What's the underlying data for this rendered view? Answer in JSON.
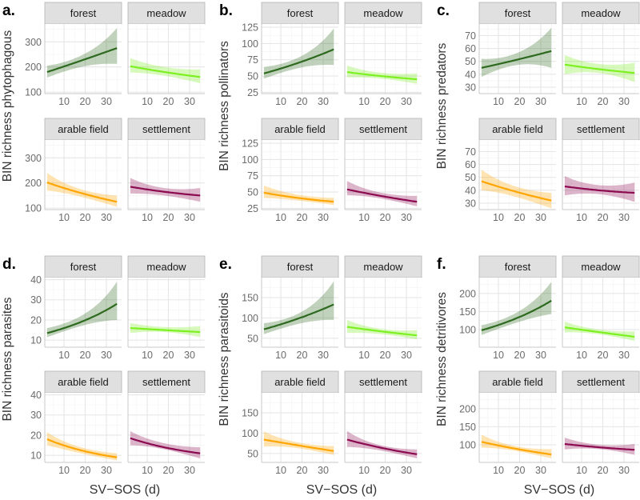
{
  "chart_data": [
    {
      "type": "line",
      "panel_label": "a.",
      "ylabel": "BIN richness phytophagous",
      "ylim": [
        94,
        371
      ],
      "yticks": [
        "100",
        "200",
        "300"
      ],
      "ytick_values": [
        100,
        200,
        300
      ],
      "xlim": [
        0.9,
        37.2
      ],
      "xticks": [
        "10",
        "20",
        "30"
      ],
      "xtick_values": [
        10,
        20,
        30
      ],
      "xlabel": null,
      "facets": [
        {
          "name": "forest",
          "color": "#2d6a1f",
          "x": [
            2,
            18,
            35
          ],
          "fit": [
            180,
            225,
            275
          ],
          "lo": [
            158,
            200,
            212
          ],
          "hi": [
            205,
            245,
            355
          ]
        },
        {
          "name": "meadow",
          "color": "#7cf020",
          "x": [
            2,
            18,
            35
          ],
          "fit": [
            203,
            180,
            160
          ],
          "lo": [
            178,
            165,
            135
          ],
          "hi": [
            235,
            200,
            190
          ]
        },
        {
          "name": "arable field",
          "color": "#ffa500",
          "x": [
            2,
            18,
            35
          ],
          "fit": [
            202,
            160,
            125
          ],
          "lo": [
            170,
            145,
            105
          ],
          "hi": [
            240,
            175,
            150
          ]
        },
        {
          "name": "settlement",
          "color": "#8b0a50",
          "x": [
            2,
            18,
            35
          ],
          "fit": [
            185,
            165,
            150
          ],
          "lo": [
            158,
            150,
            125
          ],
          "hi": [
            220,
            180,
            180
          ]
        }
      ]
    },
    {
      "type": "line",
      "panel_label": "b.",
      "ylabel": "BIN richness pollinators",
      "ylim": [
        23,
        130
      ],
      "yticks": [
        "25",
        "50",
        "75",
        "100",
        "125"
      ],
      "ytick_values": [
        25,
        50,
        75,
        100,
        125
      ],
      "xlim": [
        0.9,
        37.2
      ],
      "xticks": [
        "10",
        "20",
        "30"
      ],
      "xtick_values": [
        10,
        20,
        30
      ],
      "xlabel": null,
      "facets": [
        {
          "name": "forest",
          "color": "#2d6a1f",
          "x": [
            2,
            18,
            35
          ],
          "fit": [
            54,
            70,
            91
          ],
          "lo": [
            46,
            62,
            67
          ],
          "hi": [
            64,
            78,
            123
          ]
        },
        {
          "name": "meadow",
          "color": "#7cf020",
          "x": [
            2,
            18,
            35
          ],
          "fit": [
            56,
            50,
            45
          ],
          "lo": [
            48,
            46,
            38
          ],
          "hi": [
            66,
            55,
            54
          ]
        },
        {
          "name": "arable field",
          "color": "#ffa500",
          "x": [
            2,
            18,
            35
          ],
          "fit": [
            49,
            41,
            35
          ],
          "lo": [
            41,
            37,
            30
          ],
          "hi": [
            60,
            46,
            41
          ]
        },
        {
          "name": "settlement",
          "color": "#8b0a50",
          "x": [
            2,
            18,
            35
          ],
          "fit": [
            54,
            44,
            35
          ],
          "lo": [
            45,
            40,
            28
          ],
          "hi": [
            67,
            49,
            44
          ]
        }
      ]
    },
    {
      "type": "line",
      "panel_label": "c.",
      "ylabel": "BIN richness predators",
      "ylim": [
        25,
        79
      ],
      "yticks": [
        "30",
        "40",
        "50",
        "60",
        "70"
      ],
      "ytick_values": [
        30,
        40,
        50,
        60,
        70
      ],
      "xlim": [
        0.9,
        37.2
      ],
      "xticks": [
        "10",
        "20",
        "30"
      ],
      "xtick_values": [
        10,
        20,
        30
      ],
      "xlabel": null,
      "facets": [
        {
          "name": "forest",
          "color": "#2d6a1f",
          "x": [
            2,
            18,
            35
          ],
          "fit": [
            45,
            51,
            58
          ],
          "lo": [
            38,
            47,
            45
          ],
          "hi": [
            52,
            56,
            76
          ]
        },
        {
          "name": "meadow",
          "color": "#7cf020",
          "x": [
            2,
            18,
            35
          ],
          "fit": [
            47.5,
            44,
            41
          ],
          "lo": [
            40,
            41,
            34
          ],
          "hi": [
            55,
            48,
            49
          ]
        },
        {
          "name": "arable field",
          "color": "#ffa500",
          "x": [
            2,
            18,
            35
          ],
          "fit": [
            47,
            39,
            32
          ],
          "lo": [
            40,
            35,
            26
          ],
          "hi": [
            56,
            43,
            38
          ]
        },
        {
          "name": "settlement",
          "color": "#8b0a50",
          "x": [
            2,
            18,
            35
          ],
          "fit": [
            43,
            40,
            38
          ],
          "lo": [
            36,
            37,
            31
          ],
          "hi": [
            51,
            44,
            46
          ]
        }
      ]
    },
    {
      "type": "line",
      "panel_label": "d.",
      "ylabel": "BIN richness parasites",
      "ylim": [
        6.5,
        41
      ],
      "yticks": [
        "10",
        "20",
        "30",
        "40"
      ],
      "ytick_values": [
        10,
        20,
        30,
        40
      ],
      "xlim": [
        0.9,
        37.2
      ],
      "xticks": [
        "10",
        "20",
        "30"
      ],
      "xtick_values": [
        10,
        20,
        30
      ],
      "xlabel": "SV−SOS (d)",
      "facets": [
        {
          "name": "forest",
          "color": "#2d6a1f",
          "x": [
            2,
            18,
            35
          ],
          "fit": [
            13.5,
            19,
            28
          ],
          "lo": [
            11.5,
            17,
            20
          ],
          "hi": [
            16,
            22,
            39
          ]
        },
        {
          "name": "meadow",
          "color": "#7cf020",
          "x": [
            2,
            18,
            35
          ],
          "fit": [
            16,
            15,
            14
          ],
          "lo": [
            13.5,
            14,
            11.5
          ],
          "hi": [
            18.5,
            16.5,
            17
          ]
        },
        {
          "name": "arable field",
          "color": "#ffa500",
          "x": [
            2,
            18,
            35
          ],
          "fit": [
            18,
            12.5,
            9
          ],
          "lo": [
            15,
            11,
            7.5
          ],
          "hi": [
            21.5,
            14,
            11
          ]
        },
        {
          "name": "settlement",
          "color": "#8b0a50",
          "x": [
            2,
            18,
            35
          ],
          "fit": [
            18.5,
            14,
            11
          ],
          "lo": [
            15,
            13,
            8.5
          ],
          "hi": [
            22,
            16,
            14
          ]
        }
      ]
    },
    {
      "type": "line",
      "panel_label": "e.",
      "ylabel": "BIN richness parasitoids",
      "ylim": [
        28,
        199
      ],
      "yticks": [
        "50",
        "100",
        "150"
      ],
      "ytick_values": [
        50,
        100,
        150
      ],
      "xlim": [
        0.9,
        37.2
      ],
      "xticks": [
        "10",
        "20",
        "30"
      ],
      "xtick_values": [
        10,
        20,
        30
      ],
      "xlabel": "SV−SOS (d)",
      "facets": [
        {
          "name": "forest",
          "color": "#2d6a1f",
          "x": [
            2,
            18,
            35
          ],
          "fit": [
            72,
            98,
            133
          ],
          "lo": [
            60,
            85,
            95
          ],
          "hi": [
            87,
            110,
            190
          ]
        },
        {
          "name": "meadow",
          "color": "#7cf020",
          "x": [
            2,
            18,
            35
          ],
          "fit": [
            78,
            67,
            57
          ],
          "lo": [
            63,
            60,
            47
          ],
          "hi": [
            95,
            73,
            70
          ]
        },
        {
          "name": "arable field",
          "color": "#ffa500",
          "x": [
            2,
            18,
            35
          ],
          "fit": [
            84,
            70,
            56
          ],
          "lo": [
            67,
            63,
            46
          ],
          "hi": [
            104,
            77,
            68
          ]
        },
        {
          "name": "settlement",
          "color": "#8b0a50",
          "x": [
            2,
            18,
            35
          ],
          "fit": [
            84,
            64,
            48
          ],
          "lo": [
            66,
            57,
            38
          ],
          "hi": [
            105,
            70,
            60
          ]
        }
      ]
    },
    {
      "type": "line",
      "panel_label": "f.",
      "ylabel": "BIN richness detritivores",
      "ylim": [
        51,
        244
      ],
      "yticks": [
        "100",
        "150",
        "200"
      ],
      "ytick_values": [
        100,
        150,
        200
      ],
      "xlim": [
        0.9,
        37.2
      ],
      "xticks": [
        "10",
        "20",
        "30"
      ],
      "xtick_values": [
        10,
        20,
        30
      ],
      "xlabel": "SV−SOS (d)",
      "facets": [
        {
          "name": "forest",
          "color": "#2d6a1f",
          "x": [
            2,
            18,
            35
          ],
          "fit": [
            98,
            130,
            180
          ],
          "lo": [
            85,
            118,
            143
          ],
          "hi": [
            112,
            145,
            232
          ]
        },
        {
          "name": "meadow",
          "color": "#7cf020",
          "x": [
            2,
            18,
            35
          ],
          "fit": [
            106,
            93,
            80
          ],
          "lo": [
            92,
            87,
            68
          ],
          "hi": [
            122,
            100,
            95
          ]
        },
        {
          "name": "arable field",
          "color": "#ffa500",
          "x": [
            2,
            18,
            35
          ],
          "fit": [
            108,
            89,
            73
          ],
          "lo": [
            92,
            83,
            62
          ],
          "hi": [
            128,
            96,
            88
          ]
        },
        {
          "name": "settlement",
          "color": "#8b0a50",
          "x": [
            2,
            18,
            35
          ],
          "fit": [
            102,
            93,
            86
          ],
          "lo": [
            87,
            88,
            72
          ],
          "hi": [
            120,
            100,
            102
          ]
        }
      ]
    }
  ]
}
